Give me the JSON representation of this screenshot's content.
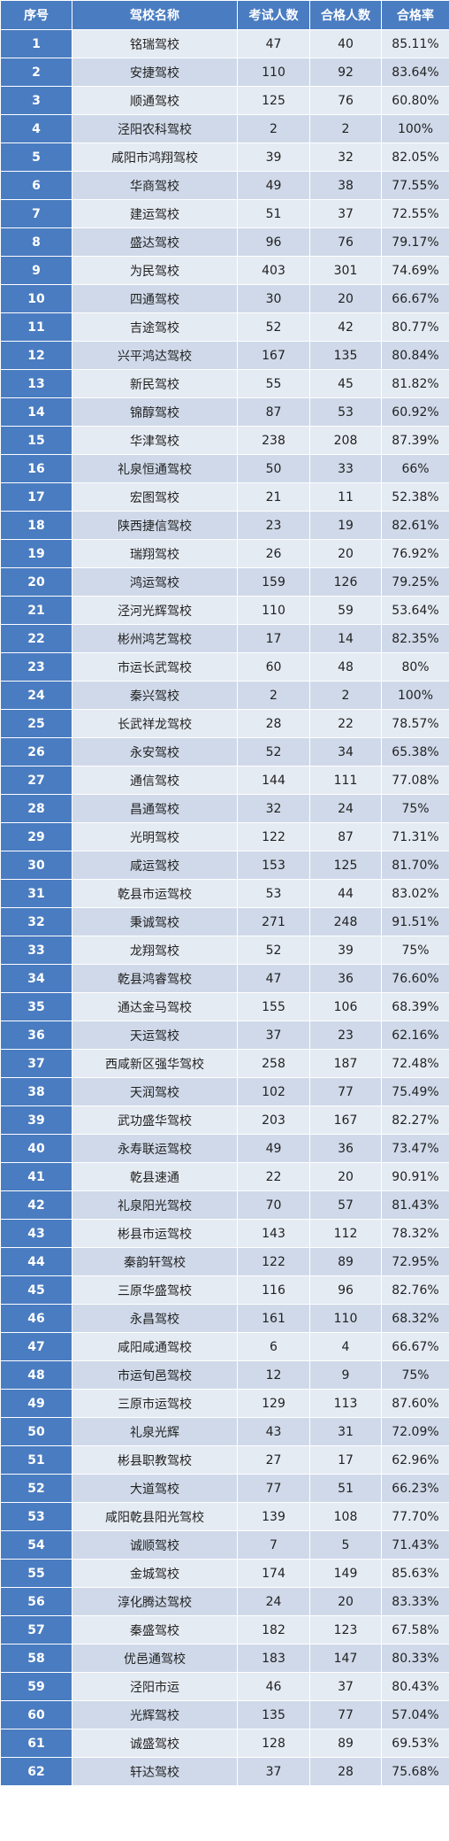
{
  "headers": [
    "序号",
    "驾校名称",
    "考试人数",
    "合格人数",
    "合格率"
  ],
  "rows": [
    [
      "1",
      "铭瑞驾校",
      "47",
      "40",
      "85.11%"
    ],
    [
      "2",
      "安捷驾校",
      "110",
      "92",
      "83.64%"
    ],
    [
      "3",
      "顺通驾校",
      "125",
      "76",
      "60.80%"
    ],
    [
      "4",
      "泾阳农科驾校",
      "2",
      "2",
      "100%"
    ],
    [
      "5",
      "咸阳市鸿翔驾校",
      "39",
      "32",
      "82.05%"
    ],
    [
      "6",
      "华商驾校",
      "49",
      "38",
      "77.55%"
    ],
    [
      "7",
      "建运驾校",
      "51",
      "37",
      "72.55%"
    ],
    [
      "8",
      "盛达驾校",
      "96",
      "76",
      "79.17%"
    ],
    [
      "9",
      "为民驾校",
      "403",
      "301",
      "74.69%"
    ],
    [
      "10",
      "四通驾校",
      "30",
      "20",
      "66.67%"
    ],
    [
      "11",
      "吉途驾校",
      "52",
      "42",
      "80.77%"
    ],
    [
      "12",
      "兴平鸿达驾校",
      "167",
      "135",
      "80.84%"
    ],
    [
      "13",
      "新民驾校",
      "55",
      "45",
      "81.82%"
    ],
    [
      "14",
      "锦醇驾校",
      "87",
      "53",
      "60.92%"
    ],
    [
      "15",
      "华津驾校",
      "238",
      "208",
      "87.39%"
    ],
    [
      "16",
      "礼泉恒通驾校",
      "50",
      "33",
      "66%"
    ],
    [
      "17",
      "宏图驾校",
      "21",
      "11",
      "52.38%"
    ],
    [
      "18",
      "陕西捷信驾校",
      "23",
      "19",
      "82.61%"
    ],
    [
      "19",
      "瑞翔驾校",
      "26",
      "20",
      "76.92%"
    ],
    [
      "20",
      "鸿运驾校",
      "159",
      "126",
      "79.25%"
    ],
    [
      "21",
      "泾河光辉驾校",
      "110",
      "59",
      "53.64%"
    ],
    [
      "22",
      "彬州鸿艺驾校",
      "17",
      "14",
      "82.35%"
    ],
    [
      "23",
      "市运长武驾校",
      "60",
      "48",
      "80%"
    ],
    [
      "24",
      "秦兴驾校",
      "2",
      "2",
      "100%"
    ],
    [
      "25",
      "长武祥龙驾校",
      "28",
      "22",
      "78.57%"
    ],
    [
      "26",
      "永安驾校",
      "52",
      "34",
      "65.38%"
    ],
    [
      "27",
      "通信驾校",
      "144",
      "111",
      "77.08%"
    ],
    [
      "28",
      "昌通驾校",
      "32",
      "24",
      "75%"
    ],
    [
      "29",
      "光明驾校",
      "122",
      "87",
      "71.31%"
    ],
    [
      "30",
      "咸运驾校",
      "153",
      "125",
      "81.70%"
    ],
    [
      "31",
      "乾县市运驾校",
      "53",
      "44",
      "83.02%"
    ],
    [
      "32",
      "秉诚驾校",
      "271",
      "248",
      "91.51%"
    ],
    [
      "33",
      "龙翔驾校",
      "52",
      "39",
      "75%"
    ],
    [
      "34",
      "乾县鸿睿驾校",
      "47",
      "36",
      "76.60%"
    ],
    [
      "35",
      "通达金马驾校",
      "155",
      "106",
      "68.39%"
    ],
    [
      "36",
      "天运驾校",
      "37",
      "23",
      "62.16%"
    ],
    [
      "37",
      "西咸新区强华驾校",
      "258",
      "187",
      "72.48%"
    ],
    [
      "38",
      "天润驾校",
      "102",
      "77",
      "75.49%"
    ],
    [
      "39",
      "武功盛华驾校",
      "203",
      "167",
      "82.27%"
    ],
    [
      "40",
      "永寿联运驾校",
      "49",
      "36",
      "73.47%"
    ],
    [
      "41",
      "乾县速通",
      "22",
      "20",
      "90.91%"
    ],
    [
      "42",
      "礼泉阳光驾校",
      "70",
      "57",
      "81.43%"
    ],
    [
      "43",
      "彬县市运驾校",
      "143",
      "112",
      "78.32%"
    ],
    [
      "44",
      "秦韵轩驾校",
      "122",
      "89",
      "72.95%"
    ],
    [
      "45",
      "三原华盛驾校",
      "116",
      "96",
      "82.76%"
    ],
    [
      "46",
      "永昌驾校",
      "161",
      "110",
      "68.32%"
    ],
    [
      "47",
      "咸阳咸通驾校",
      "6",
      "4",
      "66.67%"
    ],
    [
      "48",
      "市运旬邑驾校",
      "12",
      "9",
      "75%"
    ],
    [
      "49",
      "三原市运驾校",
      "129",
      "113",
      "87.60%"
    ],
    [
      "50",
      "礼泉光辉",
      "43",
      "31",
      "72.09%"
    ],
    [
      "51",
      "彬县职教驾校",
      "27",
      "17",
      "62.96%"
    ],
    [
      "52",
      "大道驾校",
      "77",
      "51",
      "66.23%"
    ],
    [
      "53",
      "咸阳乾县阳光驾校",
      "139",
      "108",
      "77.70%"
    ],
    [
      "54",
      "诚顺驾校",
      "7",
      "5",
      "71.43%"
    ],
    [
      "55",
      "金城驾校",
      "174",
      "149",
      "85.63%"
    ],
    [
      "56",
      "淳化腾达驾校",
      "24",
      "20",
      "83.33%"
    ],
    [
      "57",
      "秦盛驾校",
      "182",
      "123",
      "67.58%"
    ],
    [
      "58",
      "优邑通驾校",
      "183",
      "147",
      "80.33%"
    ],
    [
      "59",
      "泾阳市运",
      "46",
      "37",
      "80.43%"
    ],
    [
      "60",
      "光辉驾校",
      "135",
      "77",
      "57.04%"
    ],
    [
      "61",
      "诚盛驾校",
      "128",
      "89",
      "69.53%"
    ],
    [
      "62",
      "轩达驾校",
      "37",
      "28",
      "75.68%"
    ]
  ]
}
